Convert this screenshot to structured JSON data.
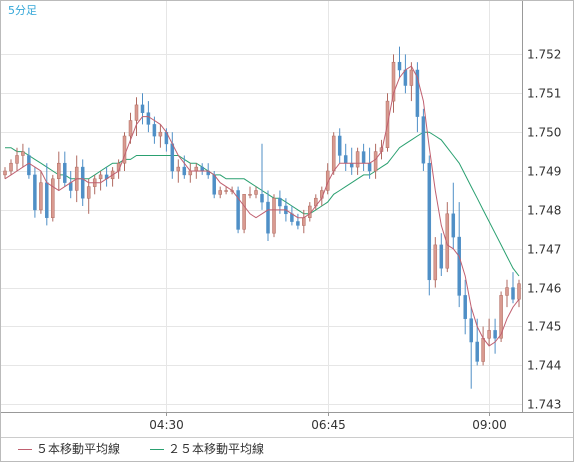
{
  "chart_data": {
    "type": "candlestick",
    "title": "5分足",
    "x_tick_labels": [
      "04:30",
      "06:45",
      "09:00"
    ],
    "y_tick_labels": [
      "1.752",
      "1.751",
      "1.750",
      "1.749",
      "1.748",
      "1.747",
      "1.746",
      "1.745",
      "1.744",
      "1.743"
    ],
    "ylim": [
      1.7428,
      1.7534
    ],
    "y_axis_side": "right",
    "grid": true,
    "colors": {
      "up": "#d99a90",
      "up_border": "#b06a60",
      "down": "#4f8fc6",
      "ma5": "#c06070",
      "ma25": "#2aa070",
      "grid": "#e6e6e6",
      "axis": "#999999",
      "title_text": "#33a6d8"
    },
    "candles": [
      [
        1.7489,
        1.7491,
        1.7488,
        1.749
      ],
      [
        1.749,
        1.7493,
        1.7489,
        1.7492
      ],
      [
        1.7492,
        1.7496,
        1.749,
        1.7494
      ],
      [
        1.7494,
        1.7497,
        1.7491,
        1.7495
      ],
      [
        1.7494,
        1.7496,
        1.7488,
        1.7489
      ],
      [
        1.7489,
        1.7491,
        1.7478,
        1.748
      ],
      [
        1.748,
        1.749,
        1.7479,
        1.7487
      ],
      [
        1.7487,
        1.7492,
        1.7476,
        1.7478
      ],
      [
        1.7478,
        1.7489,
        1.7477,
        1.7488
      ],
      [
        1.7488,
        1.7495,
        1.7485,
        1.7492
      ],
      [
        1.7492,
        1.7495,
        1.7486,
        1.7487
      ],
      [
        1.7487,
        1.749,
        1.7483,
        1.7485
      ],
      [
        1.7485,
        1.7494,
        1.7482,
        1.7491
      ],
      [
        1.7491,
        1.7493,
        1.7481,
        1.7483
      ],
      [
        1.7483,
        1.7488,
        1.7479,
        1.7486
      ],
      [
        1.7486,
        1.7489,
        1.7484,
        1.7488
      ],
      [
        1.7488,
        1.749,
        1.7485,
        1.7489
      ],
      [
        1.7489,
        1.7491,
        1.7486,
        1.7488
      ],
      [
        1.7488,
        1.7491,
        1.7486,
        1.749
      ],
      [
        1.749,
        1.7493,
        1.7488,
        1.7492
      ],
      [
        1.7492,
        1.75,
        1.749,
        1.7499
      ],
      [
        1.7499,
        1.7505,
        1.7497,
        1.7503
      ],
      [
        1.7503,
        1.7509,
        1.7499,
        1.7507
      ],
      [
        1.7507,
        1.751,
        1.7502,
        1.7505
      ],
      [
        1.7505,
        1.7508,
        1.75,
        1.7502
      ],
      [
        1.7502,
        1.7504,
        1.7497,
        1.7499
      ],
      [
        1.7499,
        1.7502,
        1.7496,
        1.75
      ],
      [
        1.75,
        1.7501,
        1.7495,
        1.7497
      ],
      [
        1.7497,
        1.75,
        1.7488,
        1.749
      ],
      [
        1.749,
        1.7493,
        1.7487,
        1.7491
      ],
      [
        1.7491,
        1.7494,
        1.7488,
        1.7489
      ],
      [
        1.7489,
        1.7492,
        1.7487,
        1.749
      ],
      [
        1.749,
        1.7492,
        1.7488,
        1.7491
      ],
      [
        1.7491,
        1.7492,
        1.7489,
        1.749
      ],
      [
        1.749,
        1.7492,
        1.7488,
        1.7489
      ],
      [
        1.7489,
        1.749,
        1.7483,
        1.7484
      ],
      [
        1.7484,
        1.7486,
        1.7483,
        1.7485
      ],
      [
        1.7485,
        1.7486,
        1.7484,
        1.7485
      ],
      [
        1.7485,
        1.7486,
        1.7484,
        1.7485
      ],
      [
        1.7485,
        1.7486,
        1.7474,
        1.7475
      ],
      [
        1.7475,
        1.7484,
        1.7474,
        1.7484
      ],
      [
        1.7484,
        1.7486,
        1.7483,
        1.7484
      ],
      [
        1.7484,
        1.7486,
        1.7483,
        1.7485
      ],
      [
        1.7484,
        1.7497,
        1.748,
        1.7482
      ],
      [
        1.7482,
        1.7485,
        1.7472,
        1.7474
      ],
      [
        1.7474,
        1.7484,
        1.7473,
        1.7483
      ],
      [
        1.7483,
        1.7485,
        1.7479,
        1.7481
      ],
      [
        1.7481,
        1.7483,
        1.7477,
        1.7479
      ],
      [
        1.7479,
        1.7481,
        1.7476,
        1.7477
      ],
      [
        1.7477,
        1.7479,
        1.7475,
        1.7476
      ],
      [
        1.7476,
        1.748,
        1.7474,
        1.7478
      ],
      [
        1.7478,
        1.7482,
        1.7477,
        1.7481
      ],
      [
        1.7481,
        1.7484,
        1.748,
        1.7483
      ],
      [
        1.7483,
        1.7486,
        1.7481,
        1.7485
      ],
      [
        1.7485,
        1.7492,
        1.7484,
        1.749
      ],
      [
        1.749,
        1.75,
        1.7489,
        1.7499
      ],
      [
        1.7499,
        1.7501,
        1.7492,
        1.7494
      ],
      [
        1.7494,
        1.7497,
        1.749,
        1.7492
      ],
      [
        1.7492,
        1.7496,
        1.7489,
        1.7491
      ],
      [
        1.7491,
        1.7496,
        1.7489,
        1.7495
      ],
      [
        1.7495,
        1.7497,
        1.749,
        1.7492
      ],
      [
        1.7492,
        1.7496,
        1.7488,
        1.749
      ],
      [
        1.749,
        1.7497,
        1.7488,
        1.7495
      ],
      [
        1.7495,
        1.7498,
        1.7493,
        1.7496
      ],
      [
        1.7496,
        1.751,
        1.7495,
        1.7508
      ],
      [
        1.7508,
        1.752,
        1.7505,
        1.7518
      ],
      [
        1.7518,
        1.7522,
        1.7514,
        1.7516
      ],
      [
        1.7516,
        1.752,
        1.751,
        1.7512
      ],
      [
        1.7512,
        1.7518,
        1.7508,
        1.7516
      ],
      [
        1.7516,
        1.7518,
        1.75,
        1.7504
      ],
      [
        1.7504,
        1.7506,
        1.749,
        1.7492
      ],
      [
        1.7492,
        1.7494,
        1.7458,
        1.7462
      ],
      [
        1.7462,
        1.7473,
        1.746,
        1.7471
      ],
      [
        1.7471,
        1.7474,
        1.7463,
        1.7465
      ],
      [
        1.7465,
        1.7482,
        1.7464,
        1.7479
      ],
      [
        1.7479,
        1.7487,
        1.747,
        1.7473
      ],
      [
        1.7473,
        1.7482,
        1.7455,
        1.7458
      ],
      [
        1.7458,
        1.7462,
        1.7448,
        1.7452
      ],
      [
        1.7452,
        1.7455,
        1.7434,
        1.7446
      ],
      [
        1.7446,
        1.7452,
        1.744,
        1.7441
      ],
      [
        1.7441,
        1.745,
        1.744,
        1.7447
      ],
      [
        1.7447,
        1.7452,
        1.7445,
        1.7449
      ],
      [
        1.7449,
        1.7452,
        1.7443,
        1.7447
      ],
      [
        1.7447,
        1.7459,
        1.7446,
        1.7458
      ],
      [
        1.7458,
        1.7462,
        1.7455,
        1.746
      ],
      [
        1.746,
        1.7464,
        1.7456,
        1.7457
      ],
      [
        1.7457,
        1.7462,
        1.7455,
        1.7461
      ]
    ],
    "ma5": [
      1.7488,
      1.7489,
      1.749,
      1.7491,
      1.7492,
      1.7491,
      1.749,
      1.7487,
      1.7486,
      1.7485,
      1.7486,
      1.7487,
      1.7488,
      1.7488,
      1.7487,
      1.7487,
      1.7487,
      1.7488,
      1.7489,
      1.749,
      1.7494,
      1.7498,
      1.7502,
      1.7504,
      1.7504,
      1.7503,
      1.7502,
      1.75,
      1.7497,
      1.7494,
      1.7492,
      1.749,
      1.749,
      1.749,
      1.749,
      1.7489,
      1.7487,
      1.7486,
      1.7485,
      1.7483,
      1.7481,
      1.7479,
      1.7478,
      1.7479,
      1.748,
      1.748,
      1.748,
      1.748,
      1.7479,
      1.7478,
      1.7478,
      1.7479,
      1.7481,
      1.7483,
      1.7487,
      1.749,
      1.7492,
      1.7492,
      1.7492,
      1.7492,
      1.7492,
      1.7492,
      1.7493,
      1.7495,
      1.7502,
      1.751,
      1.7514,
      1.7516,
      1.7517,
      1.7514,
      1.7508,
      1.7496,
      1.7485,
      1.7476,
      1.7471,
      1.747,
      1.7468,
      1.7463,
      1.7455,
      1.745,
      1.7447,
      1.7445,
      1.7446,
      1.7448,
      1.7452,
      1.7455,
      1.7457
    ],
    "ma25": [
      1.7496,
      1.7496,
      1.7495,
      1.7495,
      1.7494,
      1.7493,
      1.7492,
      1.7491,
      1.749,
      1.7489,
      1.7489,
      1.7488,
      1.7488,
      1.7488,
      1.7488,
      1.7489,
      1.749,
      1.7491,
      1.7492,
      1.7492,
      1.7493,
      1.7493,
      1.7494,
      1.7494,
      1.7494,
      1.7494,
      1.7494,
      1.7494,
      1.7494,
      1.7494,
      1.7493,
      1.7492,
      1.7492,
      1.7491,
      1.749,
      1.7489,
      1.7489,
      1.7488,
      1.7488,
      1.7488,
      1.7488,
      1.7487,
      1.7486,
      1.7485,
      1.7484,
      1.7483,
      1.7483,
      1.7482,
      1.7481,
      1.748,
      1.7479,
      1.7479,
      1.748,
      1.7481,
      1.7482,
      1.7484,
      1.7485,
      1.7486,
      1.7487,
      1.7488,
      1.7489,
      1.7489,
      1.749,
      1.7491,
      1.7492,
      1.7494,
      1.7496,
      1.7497,
      1.7498,
      1.7499,
      1.75,
      1.75,
      1.7499,
      1.7498,
      1.7496,
      1.7494,
      1.7492,
      1.7489,
      1.7486,
      1.7483,
      1.748,
      1.7477,
      1.7474,
      1.7471,
      1.7468,
      1.7465,
      1.7463
    ]
  },
  "legend": {
    "ma5_label": "５本移動平均線",
    "ma25_label": "２５本移動平均線"
  }
}
